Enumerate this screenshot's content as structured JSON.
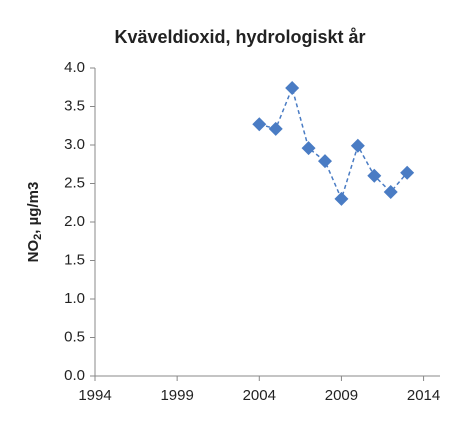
{
  "chart_data": {
    "type": "line",
    "title": "Kväveldioxid, hydrologiskt år",
    "ylabel": [
      "NO",
      "2",
      ", µg/m3"
    ],
    "x": [
      2004,
      2005,
      2006,
      2007,
      2008,
      2009,
      2010,
      2011,
      2012,
      2013
    ],
    "series": [
      {
        "color": "#4a7cc4",
        "values": [
          3.27,
          3.21,
          3.74,
          2.96,
          2.79,
          2.3,
          2.99,
          2.6,
          2.39,
          2.64
        ]
      }
    ],
    "xlim": [
      1994,
      2015
    ],
    "xticks": [
      1994,
      1999,
      2004,
      2009,
      2014
    ],
    "ylim": [
      0,
      4
    ],
    "yticks": [
      {
        "value": 0,
        "label": "0.0"
      },
      {
        "value": 0.5,
        "label": "0.5"
      },
      {
        "value": 1,
        "label": "1.0"
      },
      {
        "value": 1.5,
        "label": "1.5"
      },
      {
        "value": 2,
        "label": "2.0"
      },
      {
        "value": 2.5,
        "label": "2.5"
      },
      {
        "value": 3,
        "label": "3.0"
      },
      {
        "value": 3.5,
        "label": "3.5"
      },
      {
        "value": 4,
        "label": "4.0"
      }
    ],
    "grid": false
  }
}
